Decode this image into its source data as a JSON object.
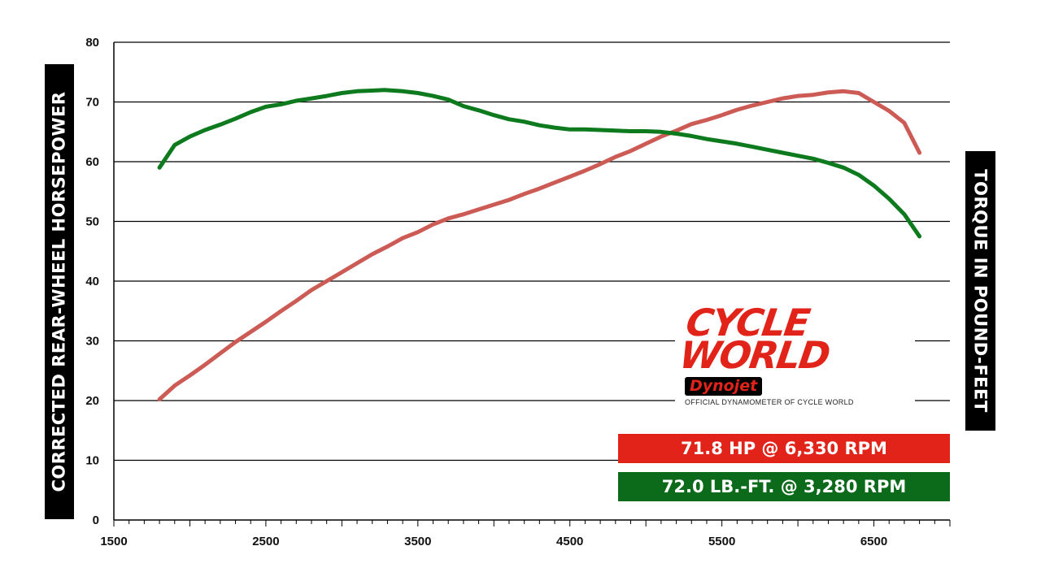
{
  "chart_data": {
    "type": "line",
    "title": "",
    "xlabel": "",
    "ylabel": "CORRECTED REAR-WHEEL HORSEPOWER",
    "ylabel_right": "TORQUE IN POUND-FEET",
    "xlim": [
      1500,
      7000
    ],
    "ylim": [
      0,
      80
    ],
    "x_ticks": [
      1500,
      2500,
      3500,
      4500,
      5500,
      6500
    ],
    "y_ticks": [
      0,
      10,
      20,
      30,
      40,
      50,
      60,
      70,
      80
    ],
    "grid": "horizontal",
    "series": [
      {
        "key": "horsepower",
        "color": "#cd5b55",
        "x": [
          1800,
          1900,
          2000,
          2100,
          2200,
          2300,
          2400,
          2500,
          2600,
          2700,
          2800,
          2900,
          3000,
          3100,
          3200,
          3300,
          3400,
          3500,
          3600,
          3700,
          3800,
          3900,
          4000,
          4100,
          4200,
          4300,
          4400,
          4500,
          4600,
          4700,
          4800,
          4900,
          5000,
          5100,
          5200,
          5300,
          5400,
          5500,
          5600,
          5700,
          5800,
          5900,
          6000,
          6100,
          6200,
          6300,
          6400,
          6500,
          6600,
          6700,
          6800
        ],
        "values": [
          20.2,
          22.5,
          24.2,
          26.0,
          27.9,
          29.8,
          31.5,
          33.2,
          35.0,
          36.7,
          38.5,
          40.0,
          41.5,
          43.0,
          44.5,
          45.8,
          47.2,
          48.2,
          49.5,
          50.5,
          51.2,
          52.0,
          52.8,
          53.6,
          54.6,
          55.5,
          56.5,
          57.5,
          58.5,
          59.6,
          60.8,
          61.8,
          63.0,
          64.2,
          65.2,
          66.3,
          67.0,
          67.8,
          68.7,
          69.4,
          70.0,
          70.6,
          71.0,
          71.2,
          71.6,
          71.8,
          71.5,
          70.0,
          68.5,
          66.5,
          61.5
        ]
      },
      {
        "key": "torque",
        "color": "#0c7a1d",
        "x": [
          1800,
          1900,
          2000,
          2100,
          2200,
          2300,
          2400,
          2500,
          2600,
          2700,
          2800,
          2900,
          3000,
          3100,
          3200,
          3280,
          3400,
          3500,
          3600,
          3700,
          3800,
          3900,
          4000,
          4100,
          4200,
          4300,
          4400,
          4500,
          4600,
          4700,
          4800,
          4900,
          5000,
          5100,
          5200,
          5300,
          5400,
          5500,
          5600,
          5700,
          5800,
          5900,
          6000,
          6100,
          6200,
          6300,
          6400,
          6500,
          6600,
          6700,
          6800
        ],
        "values": [
          59.0,
          62.8,
          64.2,
          65.3,
          66.2,
          67.2,
          68.3,
          69.2,
          69.6,
          70.2,
          70.6,
          71.0,
          71.5,
          71.8,
          71.9,
          72.0,
          71.8,
          71.5,
          71.0,
          70.4,
          69.3,
          68.6,
          67.8,
          67.1,
          66.7,
          66.1,
          65.7,
          65.4,
          65.4,
          65.3,
          65.2,
          65.1,
          65.1,
          65.0,
          64.7,
          64.3,
          63.8,
          63.4,
          63.0,
          62.5,
          62.0,
          61.5,
          61.0,
          60.5,
          59.8,
          59.0,
          57.8,
          56.0,
          53.8,
          51.2,
          47.5
        ]
      }
    ]
  },
  "logo": {
    "line1": "CYCLE",
    "line2": "WORLD",
    "badge": "Dynojet",
    "tagline": "OFFICIAL DYNAMOMETER OF CYCLE WORLD"
  },
  "stats": {
    "hp": "71.8 HP @ 6,330 RPM",
    "torque": "72.0 LB.-FT. @ 3,280 RPM"
  }
}
